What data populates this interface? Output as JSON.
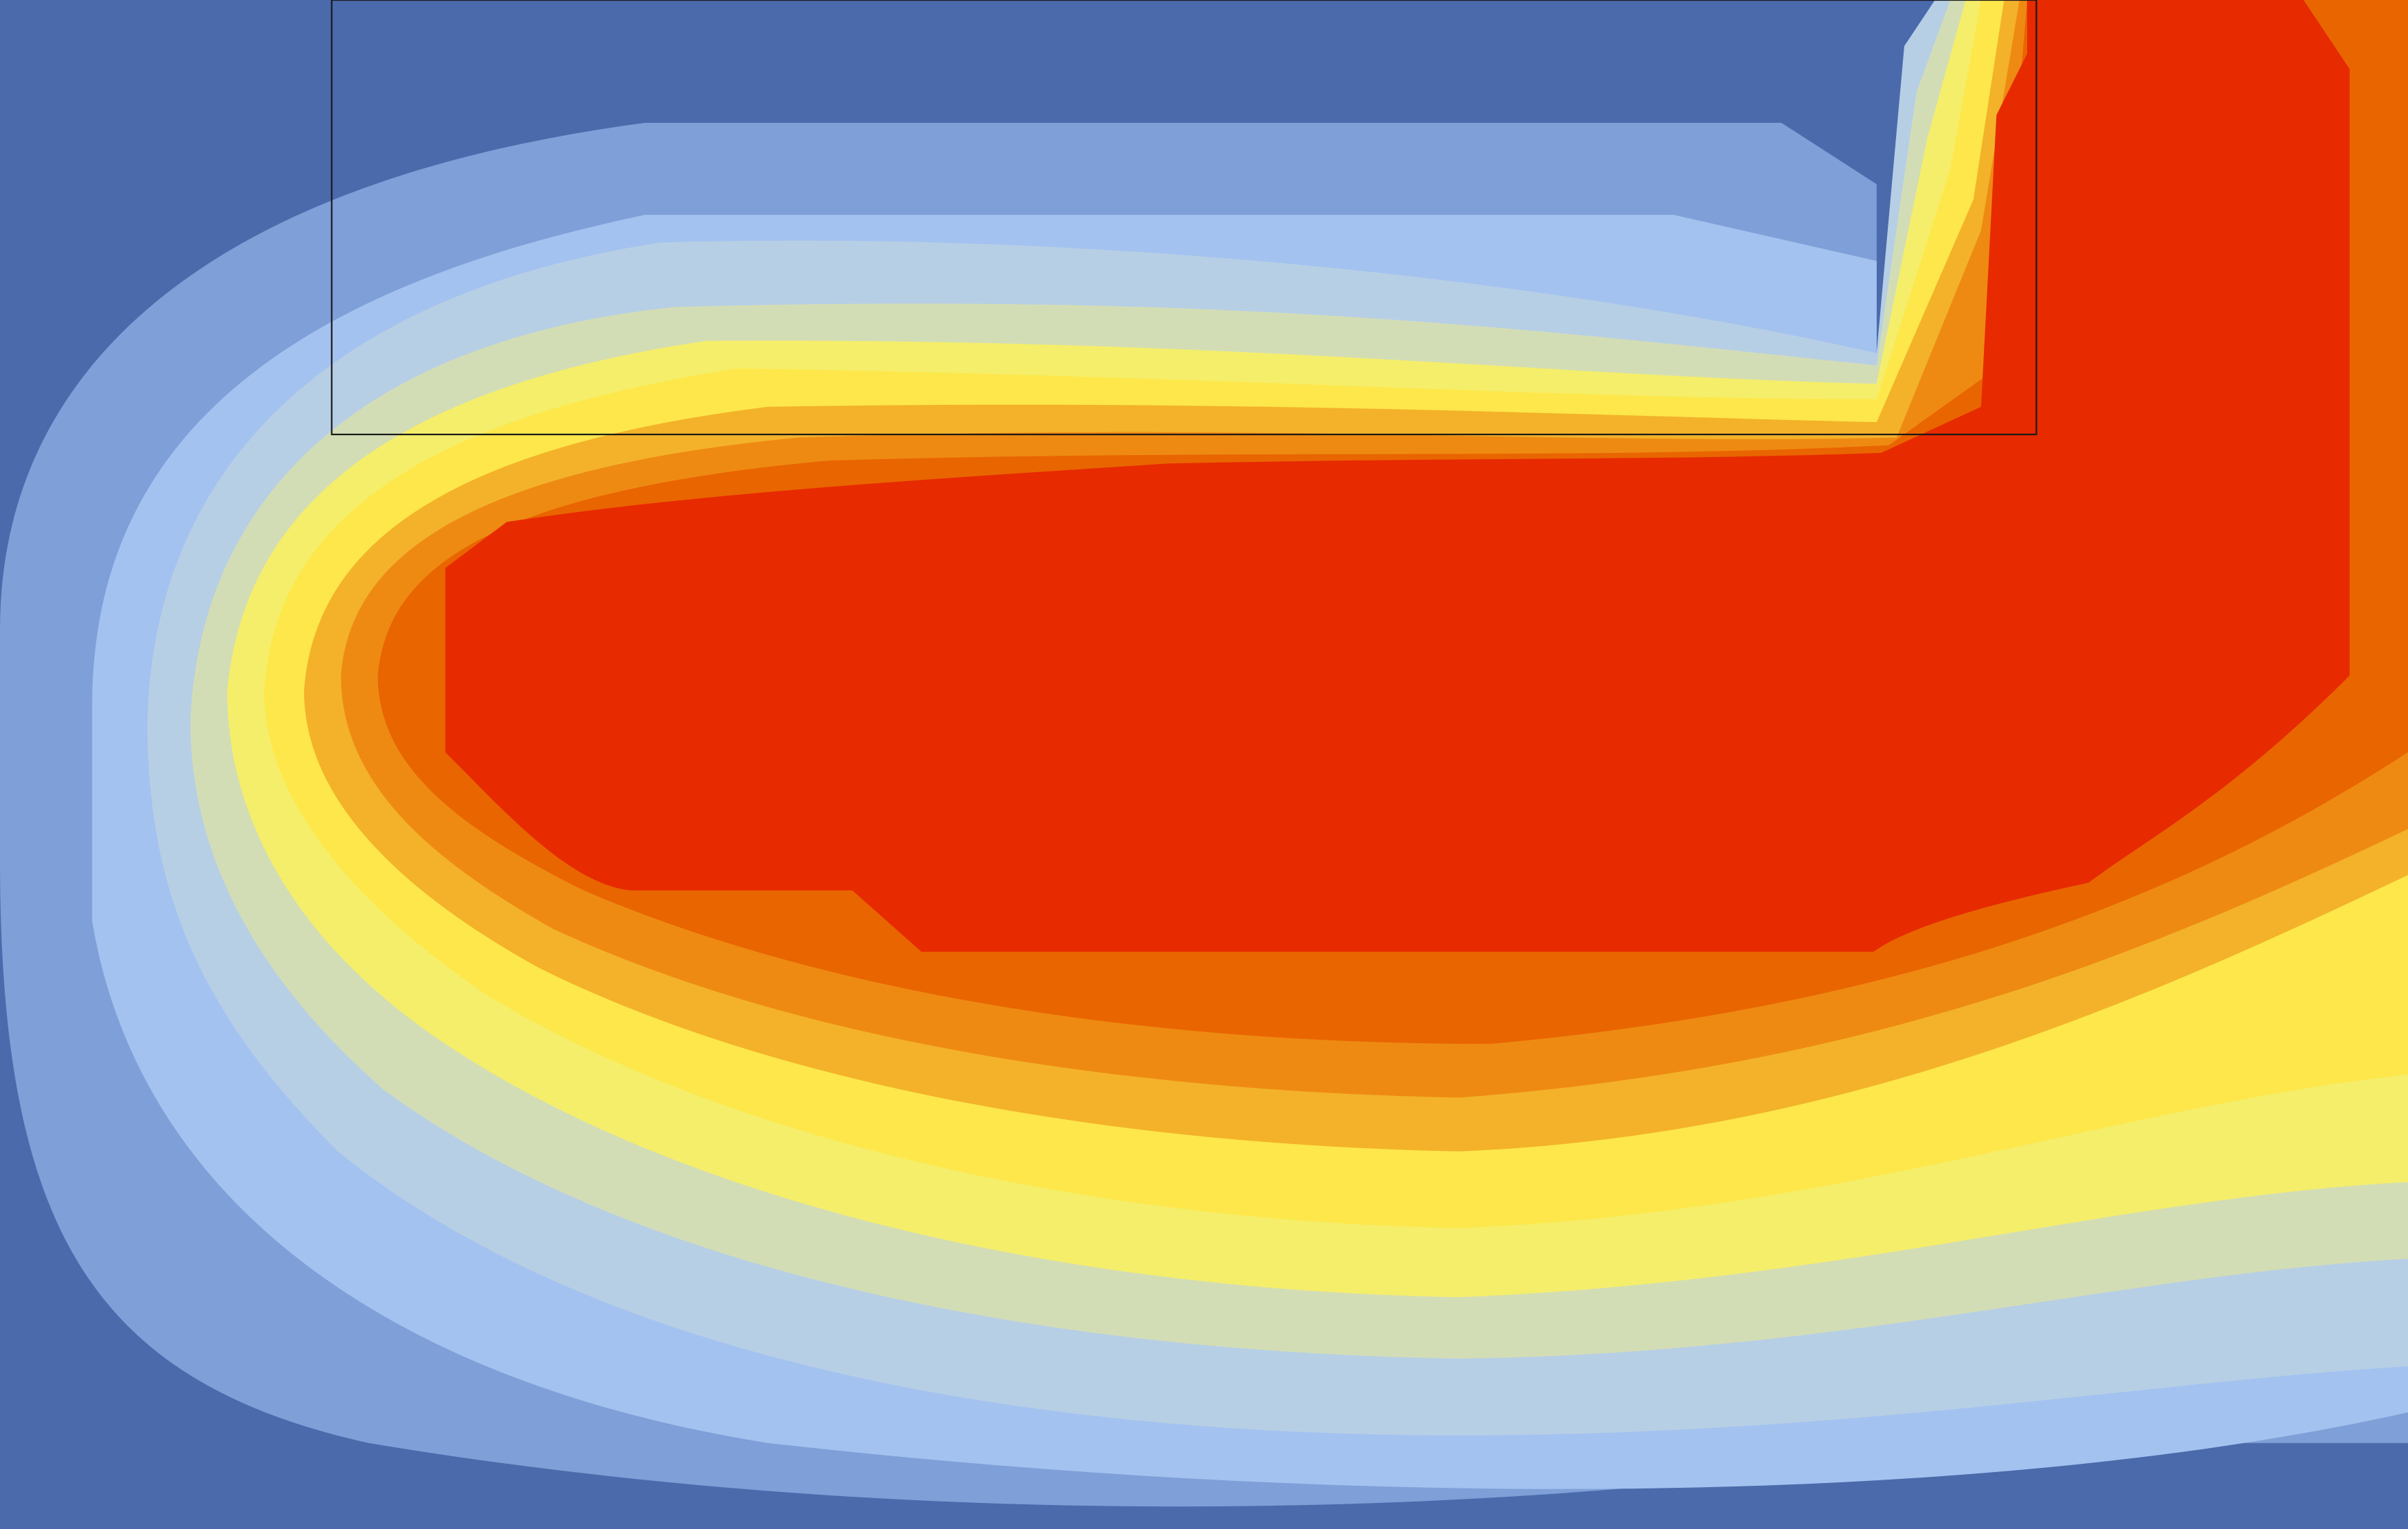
{
  "chart_data": {
    "type": "heatmap",
    "subtype": "filled-contour",
    "levels": 10,
    "colormap": [
      "#4a6aab",
      "#7f9fd8",
      "#a4c2ef",
      "#b7cfe5",
      "#d3ddb5",
      "#f5ee6a",
      "#fde74b",
      "#f3b22a",
      "#ee8a12",
      "#e96500",
      "#e72a00"
    ],
    "grid": false,
    "legend": false,
    "notes": []
  }
}
